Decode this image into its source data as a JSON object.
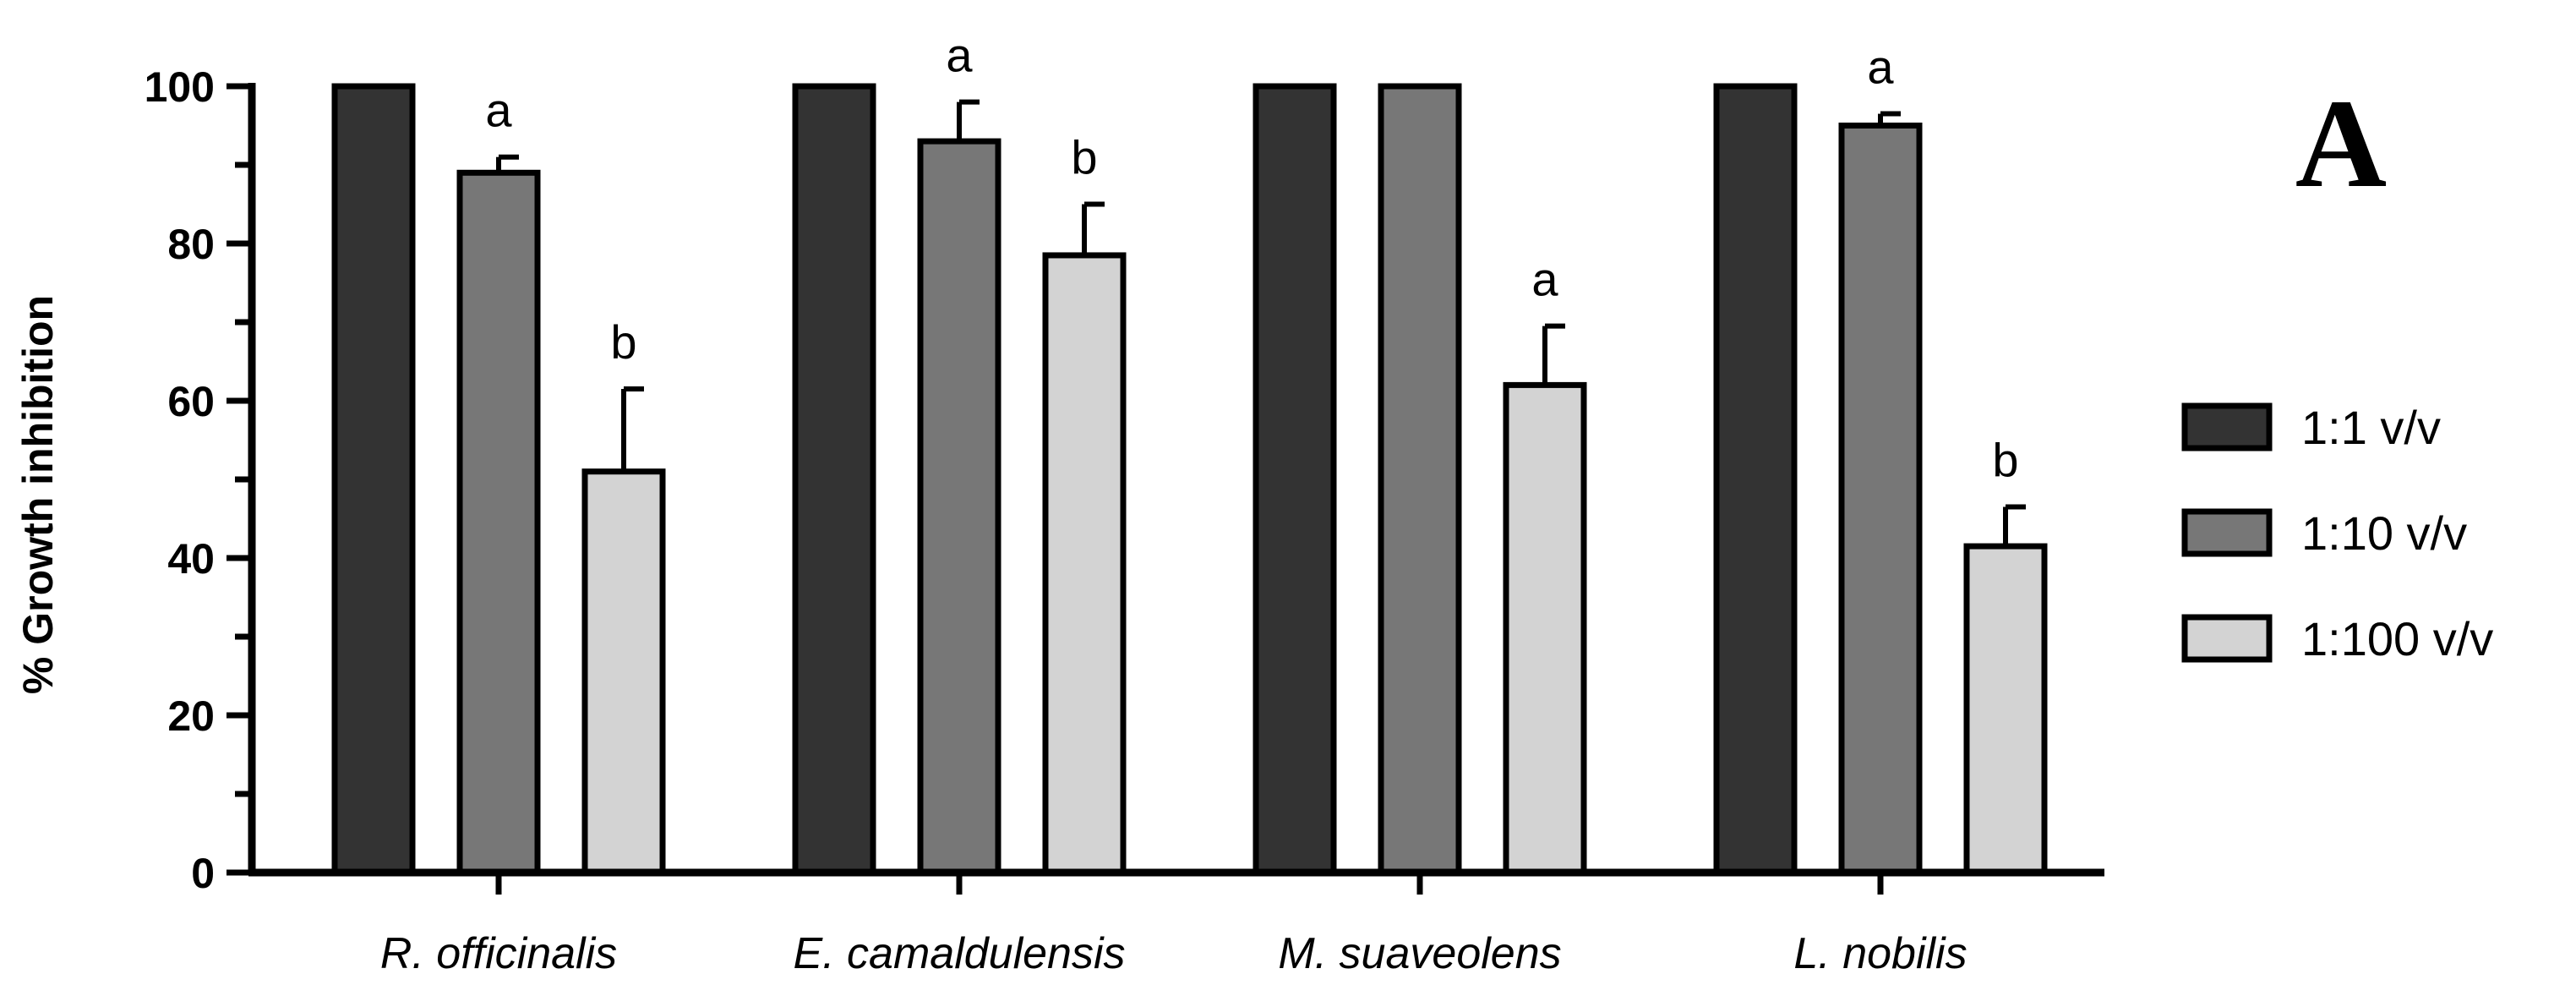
{
  "chart_data": {
    "type": "bar",
    "title": "",
    "panel_label": "A",
    "xlabel": "",
    "ylabel": "% Growth inhibition",
    "ylim": [
      0,
      100
    ],
    "yticks": [
      "0",
      "20",
      "40",
      "60",
      "80",
      "100"
    ],
    "categories": [
      "R. officinalis",
      "E. camaldulensis",
      "M. suaveolens",
      "L. nobilis"
    ],
    "legend_position": "right",
    "series": [
      {
        "name": "1:1 v/v",
        "color": "#333333",
        "values": [
          100,
          100,
          100,
          100
        ],
        "errors": [
          0,
          0,
          0,
          0
        ],
        "labels": [
          "",
          "",
          "",
          ""
        ]
      },
      {
        "name": "1:10 v/v",
        "color": "#777777",
        "values": [
          89,
          93,
          100,
          95
        ],
        "errors": [
          2,
          5,
          0,
          1.5
        ],
        "labels": [
          "a",
          "a",
          "",
          "a"
        ]
      },
      {
        "name": "1:100 v/v",
        "color": "#d3d3d3",
        "values": [
          51,
          78.5,
          62,
          41.5
        ],
        "errors": [
          10.5,
          6.5,
          7.5,
          5
        ],
        "labels": [
          "b",
          "b",
          "a",
          "b"
        ]
      }
    ]
  }
}
